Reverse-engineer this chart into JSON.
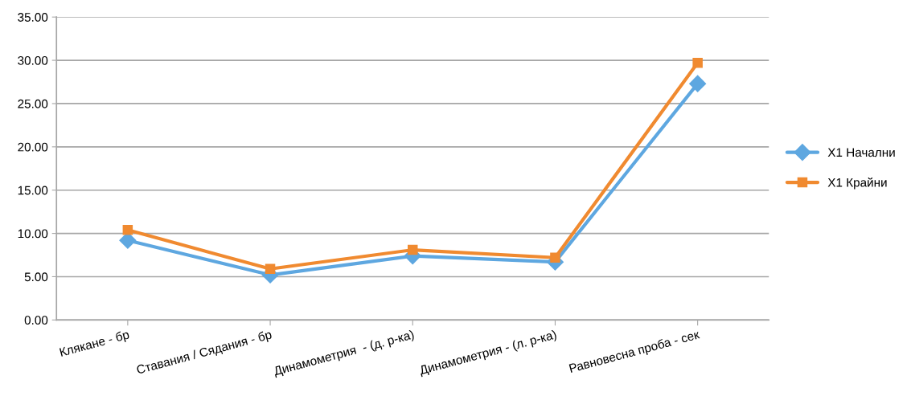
{
  "chart_data": {
    "type": "line",
    "categories": [
      "Клякане - бр",
      "Ставания / Сядания - бр",
      "Динамометрия  - (д. р-ка)",
      "Динамометрия - (л. р-ка)",
      "Равновесна проба - сек"
    ],
    "series": [
      {
        "name": "X1 Начални",
        "color": "#5ea7e0",
        "marker": "diamond",
        "values": [
          9.2,
          5.2,
          7.4,
          6.7,
          27.3
        ]
      },
      {
        "name": "X1 Крайни",
        "color": "#f08a30",
        "marker": "square",
        "values": [
          10.4,
          5.9,
          8.1,
          7.2,
          29.7
        ]
      }
    ],
    "ylim": [
      0,
      35
    ],
    "yticks": [
      {
        "value": 0,
        "label": "0.00"
      },
      {
        "value": 5,
        "label": "5.00"
      },
      {
        "value": 10,
        "label": "10.00"
      },
      {
        "value": 15,
        "label": "15.00"
      },
      {
        "value": 20,
        "label": "20.00"
      },
      {
        "value": 25,
        "label": "25.00"
      },
      {
        "value": 30,
        "label": "30.00"
      },
      {
        "value": 35,
        "label": "35.00"
      }
    ],
    "grid": "y",
    "legend": "right",
    "line_style": "solid"
  }
}
